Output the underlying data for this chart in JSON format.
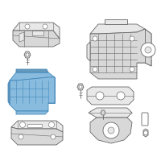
{
  "bg_color": "#ffffff",
  "line_color": "#666666",
  "highlight_color": "#4488bb",
  "highlight_fill": "#88bbdd",
  "gray_fill": "#e8e8e8",
  "gray_fill2": "#d8d8d8",
  "white": "#ffffff",
  "figsize": [
    2.0,
    2.0
  ],
  "dpi": 100
}
